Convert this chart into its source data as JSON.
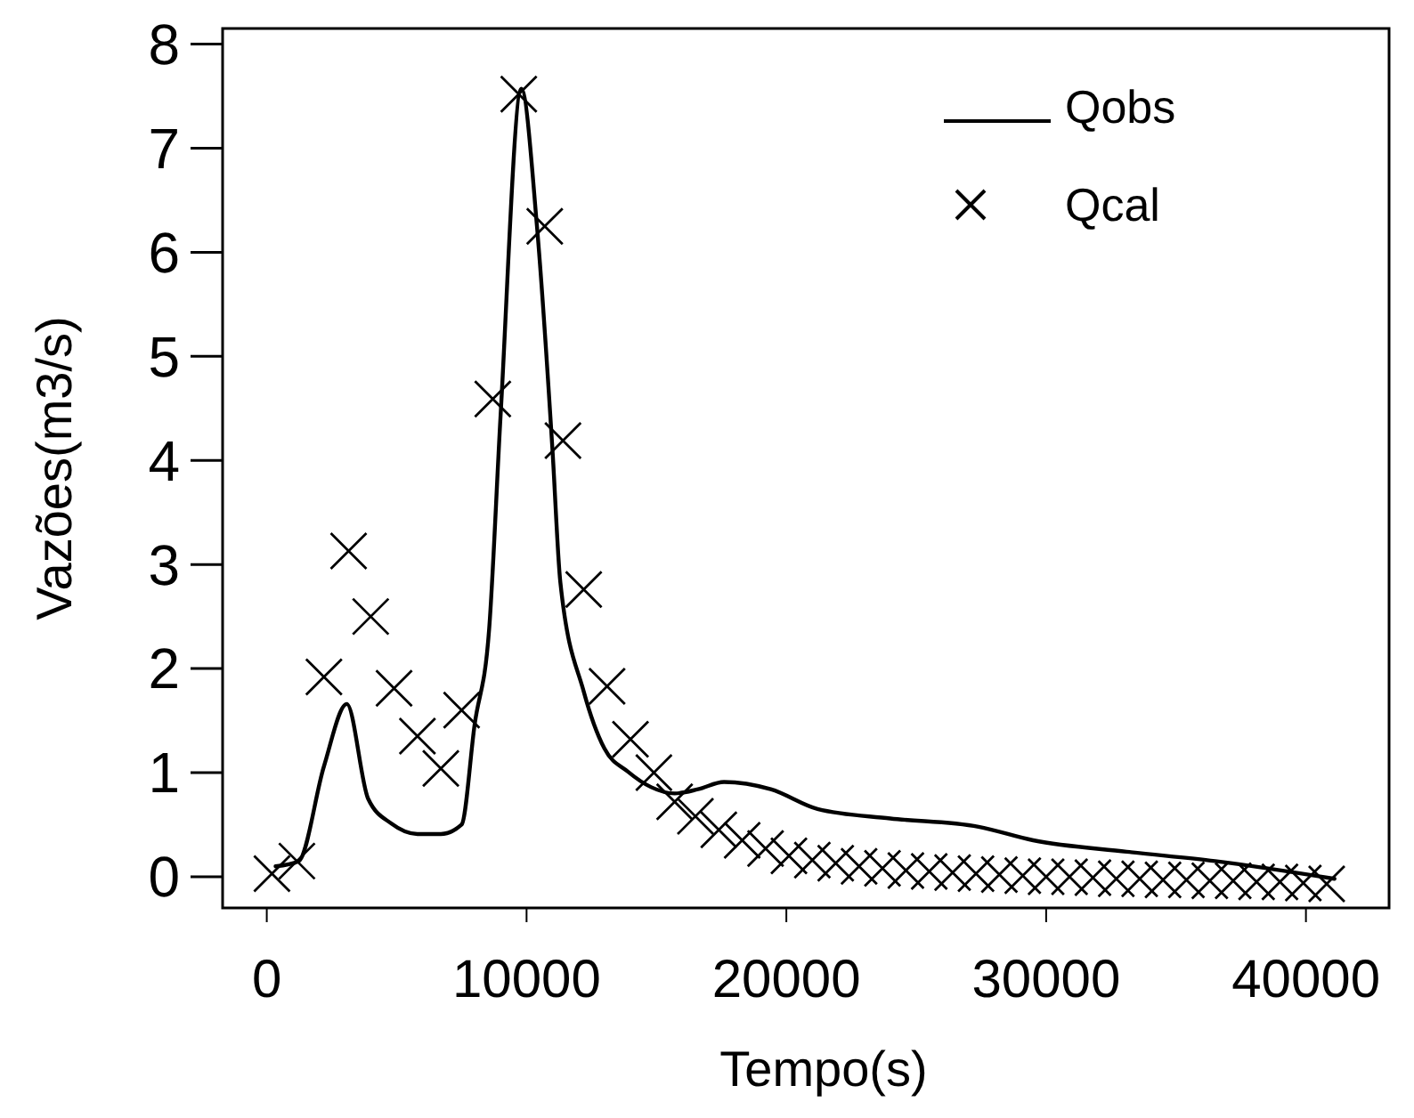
{
  "chart_data": {
    "type": "line",
    "xlabel": "Tempo(s)",
    "ylabel": "Vazões(m3/s)",
    "xlim": [
      -1700,
      43200
    ],
    "ylim": [
      -0.3,
      8.15
    ],
    "xticks": [
      0,
      10000,
      20000,
      30000,
      40000
    ],
    "yticks": [
      0,
      1,
      2,
      3,
      4,
      5,
      6,
      7,
      8
    ],
    "grid": false,
    "legend": "top right",
    "series": [
      {
        "name": "Qobs",
        "color": "#000000",
        "line_style": "solid",
        "marker": "none",
        "x": [
          340,
          1230,
          2200,
          3080,
          3900,
          4800,
          5800,
          6700,
          7500,
          8000,
          8560,
          9000,
          9800,
          10400,
          11000,
          11300,
          12200,
          13000,
          13900,
          14800,
          15700,
          16600,
          17600,
          19400,
          21200,
          24000,
          27400,
          29500,
          33100,
          36500,
          41100
        ],
        "values": [
          0.1,
          0.15,
          1.06,
          1.66,
          0.75,
          0.51,
          0.41,
          0.41,
          0.5,
          1.46,
          2.38,
          4.43,
          7.57,
          6.25,
          4.09,
          2.83,
          1.78,
          1.23,
          1.01,
          0.86,
          0.8,
          0.84,
          0.91,
          0.84,
          0.65,
          0.56,
          0.48,
          0.35,
          0.24,
          0.15,
          -0.02
        ]
      },
      {
        "name": "Qcal",
        "type": "scatter",
        "color": "#000000",
        "marker": "cross",
        "x": [
          200,
          1160,
          2200,
          3150,
          4000,
          4900,
          5800,
          6700,
          7500,
          8700,
          9700,
          10700,
          11400,
          12200,
          13100,
          14000,
          14900,
          15700,
          16500,
          17400,
          18300,
          19200,
          20100,
          21000,
          21900,
          22800,
          23700,
          24600,
          25500,
          26400,
          27300,
          28200,
          29100,
          30000,
          30900,
          31800,
          32700,
          33600,
          34500,
          35400,
          36300,
          37200,
          38100,
          39000,
          39900,
          40800
        ],
        "values": [
          0.03,
          0.15,
          1.92,
          3.13,
          2.5,
          1.81,
          1.35,
          1.04,
          1.6,
          4.59,
          7.52,
          6.25,
          4.19,
          2.76,
          1.83,
          1.32,
          1.0,
          0.72,
          0.58,
          0.45,
          0.35,
          0.27,
          0.2,
          0.16,
          0.13,
          0.1,
          0.08,
          0.06,
          0.05,
          0.04,
          0.03,
          0.02,
          0.01,
          0.0,
          0.0,
          -0.01,
          -0.02,
          -0.02,
          -0.03,
          -0.03,
          -0.04,
          -0.04,
          -0.05,
          -0.05,
          -0.06,
          -0.07
        ]
      }
    ]
  }
}
